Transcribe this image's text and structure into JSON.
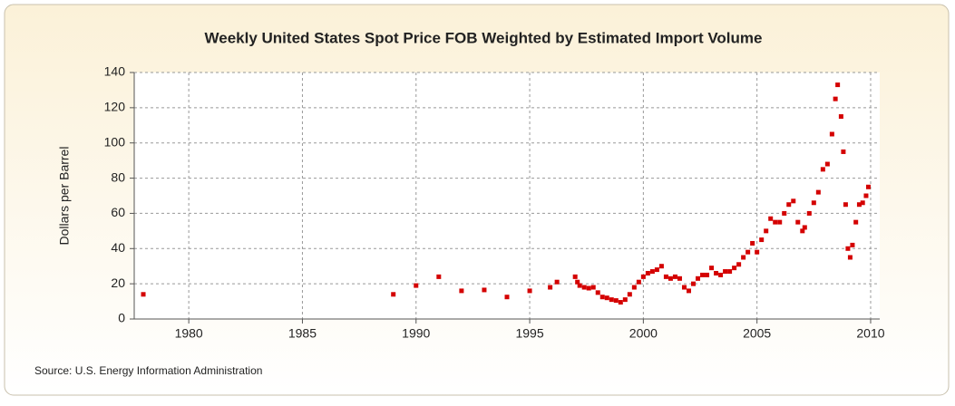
{
  "chart_data": {
    "type": "scatter",
    "title": "Weekly United States Spot Price FOB Weighted by Estimated Import Volume",
    "ylabel": "Dollars per Barrel",
    "source": "Source: U.S. Energy Information Administration",
    "color": "#d40000",
    "grid": true,
    "xlim": [
      1977.6,
      2010.4
    ],
    "xticks": [
      1980,
      1985,
      1990,
      1995,
      2000,
      2005,
      2010
    ],
    "ylim": [
      0,
      140
    ],
    "yticks": [
      0,
      20,
      40,
      60,
      80,
      100,
      120,
      140
    ],
    "x": [
      1978.0,
      1989.0,
      1990.0,
      1991.0,
      1992.0,
      1993.0,
      1994.0,
      1995.0,
      1995.9,
      1996.2,
      1997.0,
      1997.1,
      1997.2,
      1997.4,
      1997.6,
      1997.8,
      1998.0,
      1998.2,
      1998.4,
      1998.6,
      1998.8,
      1999.0,
      1999.2,
      1999.4,
      1999.6,
      1999.8,
      2000.0,
      2000.2,
      2000.4,
      2000.6,
      2000.8,
      2001.0,
      2001.2,
      2001.4,
      2001.6,
      2001.8,
      2002.0,
      2002.2,
      2002.4,
      2002.6,
      2002.8,
      2003.0,
      2003.2,
      2003.4,
      2003.6,
      2003.8,
      2004.0,
      2004.2,
      2004.4,
      2004.6,
      2004.8,
      2005.0,
      2005.2,
      2005.4,
      2005.6,
      2005.8,
      2006.0,
      2006.2,
      2006.4,
      2006.6,
      2006.8,
      2007.0,
      2007.1,
      2007.3,
      2007.5,
      2007.7,
      2007.9,
      2008.1,
      2008.3,
      2008.45,
      2008.55,
      2008.7,
      2008.8,
      2008.9,
      2009.0,
      2009.1,
      2009.2,
      2009.35,
      2009.5,
      2009.65,
      2009.8,
      2009.9
    ],
    "values": [
      14,
      14,
      19,
      24,
      16,
      16.5,
      12.5,
      16,
      18,
      21,
      24,
      21,
      19,
      18,
      17.5,
      18,
      15,
      12.5,
      12,
      11,
      10.5,
      9.5,
      11,
      14,
      18,
      21,
      24,
      26,
      27,
      28,
      30,
      24,
      23,
      24,
      23,
      18,
      16,
      20,
      23,
      25,
      25,
      29,
      26,
      25,
      27,
      27,
      29,
      31,
      35,
      38,
      43,
      38,
      45,
      50,
      57,
      55,
      55,
      60,
      65,
      67,
      55,
      50,
      52,
      60,
      66,
      72,
      85,
      88,
      105,
      125,
      133,
      115,
      95,
      65,
      40,
      35,
      42,
      55,
      65,
      66,
      70,
      75
    ]
  }
}
